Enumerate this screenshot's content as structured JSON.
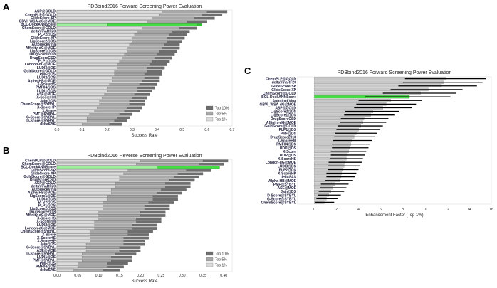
{
  "panel_labels": {
    "a": "A",
    "b": "B",
    "c": "C"
  },
  "chart_data": [
    {
      "type": "bar",
      "orientation": "horizontal",
      "stacked_overlay": true,
      "title": "PDBbind2016 Forward Screening Power Evaluation",
      "xlabel": "Success Rate",
      "ylabel": "",
      "xlim": [
        0,
        0.7
      ],
      "xticks": [
        0.0,
        0.1,
        0.2,
        0.3,
        0.4,
        0.5,
        0.6,
        0.7
      ],
      "legend_position": "bottom-right",
      "highlight": "BCL-DockANNScore",
      "highlight_color": "#44dd44",
      "categories": [
        "ASP@GOLD",
        "ChemPLP@GOLD",
        "GlideScore-SP",
        "GBVI_WSA-dG@MOE",
        "BCL-DockANNScore",
        "ChemScore@GOLD",
        "deltaVinaRF20",
        "PLP2@DS",
        "GlideScore-XP",
        "LigScore2@DS",
        "AutodockVina",
        "Affinity-dG@MOE",
        "LigScore1@DS",
        "DrugScore2018",
        "DrugScoreCSD",
        "PLP1@DS",
        "London-dG@MOE",
        "LUDI3@DS",
        "GoldScore@GOLD",
        "PMF@DS",
        "LUDI2@DS",
        "Alpha-HB@MOE",
        "X-ScoreHS",
        "PMF04@DS",
        "LUDI1@DS",
        "ASE@MOE",
        "X-ScoreHM",
        "Jain@DS",
        "ChemScore@SYBYL",
        "X-ScoreHP",
        "X-Score",
        "PMF@SYBYL",
        "G-Score@SYBYL",
        "D-Score@SYBYL",
        "deltaSAS"
      ],
      "series": [
        {
          "name": "Top 10%",
          "color": "#6e6e6e",
          "values": [
            0.68,
            0.66,
            0.63,
            0.6,
            0.58,
            0.56,
            0.53,
            0.52,
            0.51,
            0.5,
            0.49,
            0.49,
            0.48,
            0.47,
            0.46,
            0.45,
            0.44,
            0.43,
            0.42,
            0.42,
            0.41,
            0.41,
            0.4,
            0.39,
            0.38,
            0.37,
            0.36,
            0.35,
            0.35,
            0.34,
            0.33,
            0.3,
            0.29,
            0.28,
            0.26
          ]
        },
        {
          "name": "Top 5%",
          "color": "#a8a8a8",
          "values": [
            0.6,
            0.58,
            0.55,
            0.52,
            0.56,
            0.49,
            0.46,
            0.45,
            0.44,
            0.44,
            0.43,
            0.42,
            0.41,
            0.4,
            0.39,
            0.38,
            0.37,
            0.36,
            0.36,
            0.35,
            0.35,
            0.34,
            0.33,
            0.32,
            0.32,
            0.31,
            0.3,
            0.29,
            0.29,
            0.28,
            0.27,
            0.25,
            0.24,
            0.23,
            0.21
          ]
        },
        {
          "name": "Top 1%",
          "color": "#dcdcdc",
          "values": [
            0.42,
            0.41,
            0.38,
            0.36,
            0.2,
            0.34,
            0.32,
            0.31,
            0.3,
            0.3,
            0.29,
            0.28,
            0.28,
            0.27,
            0.26,
            0.25,
            0.24,
            0.24,
            0.23,
            0.23,
            0.22,
            0.22,
            0.21,
            0.2,
            0.2,
            0.19,
            0.18,
            0.17,
            0.17,
            0.16,
            0.15,
            0.13,
            0.12,
            0.12,
            0.1
          ]
        }
      ]
    },
    {
      "type": "bar",
      "orientation": "horizontal",
      "stacked_overlay": true,
      "title": "PDBbind2016 Reverse Screening Power Evaluation",
      "xlabel": "Success Rate",
      "ylabel": "",
      "xlim": [
        0,
        0.42
      ],
      "xticks": [
        0.0,
        0.05,
        0.1,
        0.15,
        0.2,
        0.25,
        0.3,
        0.35,
        0.4
      ],
      "legend_position": "bottom-right",
      "highlight": "BCL-DockANNScore",
      "highlight_color": "#44dd44",
      "categories": [
        "ChemPLP@GOLD",
        "ChemScore@GOLD",
        "BCL-DockANNScore",
        "GlideScore-SP",
        "GlideScore-XP",
        "GoldScore@GOLD",
        "DrugScoreCSD",
        "ASP@GOLD",
        "deltaVinaRF20",
        "AutodockVina",
        "Alpha-HB@MOE",
        "LigScore1@DS",
        "LUDI3@DS",
        "PLP2@DS",
        "PLP1@DS",
        "LigScore2@DS",
        "DrugScore2018",
        "Affinity-dG@MOE",
        "X-ScoreHS",
        "X-ScoreHM",
        "LUDI2@DS",
        "London-dG@MOE",
        "ChemScore@SYBYL",
        "X-Score",
        "X-ScoreHS",
        "X-ScoreHP",
        "Jain@DS",
        "G-Score@SYBYL",
        "ASE@MOE",
        "D-Score@SYBYL",
        "LUDI1@DS",
        "PMF@SYBYL",
        "PMF@DS",
        "PMF04@DS",
        "deltaSAS"
      ],
      "series": [
        {
          "name": "Top 10%",
          "color": "#6e6e6e",
          "values": [
            0.41,
            0.4,
            0.39,
            0.37,
            0.35,
            0.34,
            0.33,
            0.32,
            0.32,
            0.31,
            0.3,
            0.29,
            0.29,
            0.28,
            0.27,
            0.27,
            0.26,
            0.26,
            0.25,
            0.25,
            0.24,
            0.24,
            0.23,
            0.22,
            0.22,
            0.21,
            0.21,
            0.2,
            0.2,
            0.19,
            0.18,
            0.18,
            0.17,
            0.16,
            0.15
          ]
        },
        {
          "name": "Top 5%",
          "color": "#a8a8a8",
          "values": [
            0.35,
            0.34,
            0.39,
            0.31,
            0.29,
            0.28,
            0.27,
            0.26,
            0.26,
            0.25,
            0.24,
            0.23,
            0.23,
            0.22,
            0.21,
            0.21,
            0.2,
            0.2,
            0.19,
            0.19,
            0.18,
            0.18,
            0.17,
            0.17,
            0.16,
            0.16,
            0.16,
            0.15,
            0.15,
            0.14,
            0.13,
            0.13,
            0.12,
            0.12,
            0.11
          ]
        },
        {
          "name": "Top 1%",
          "color": "#dcdcdc",
          "values": [
            0.2,
            0.19,
            0.24,
            0.17,
            0.16,
            0.15,
            0.15,
            0.14,
            0.14,
            0.13,
            0.13,
            0.12,
            0.12,
            0.11,
            0.11,
            0.11,
            0.1,
            0.1,
            0.1,
            0.09,
            0.09,
            0.09,
            0.08,
            0.08,
            0.08,
            0.08,
            0.07,
            0.07,
            0.07,
            0.06,
            0.06,
            0.06,
            0.05,
            0.05,
            0.04
          ]
        }
      ]
    },
    {
      "type": "bar",
      "orientation": "horizontal",
      "error_bars": true,
      "title": "PDBbind2016 Forward Screening Power Evaluation",
      "xlabel": "Enhancement Factor (Top 1%)",
      "ylabel": "",
      "xlim": [
        -1.5,
        16
      ],
      "xticks": [
        0,
        2,
        4,
        6,
        8,
        10,
        12,
        14,
        16
      ],
      "highlight": "BCL-DockANNScore",
      "highlight_color": "#44dd44",
      "categories": [
        "ChemPLP@GOLD",
        "deltaVinaRF20",
        "GlideScore-SP",
        "GlideScore-XP",
        "ChemScore@GOLD",
        "BCL-DockANNScore",
        "AutodockVina",
        "GBVI_WSA-dG@MOE",
        "ASP@GOLD",
        "LigScore2@DS",
        "LigScore1@DS",
        "DrugScoreCSD",
        "Affinity-dG@MOE",
        "GoldScore@GOLD",
        "PLP1@DS",
        "PMF@DS",
        "DrugScore2018",
        "X-ScoreHM",
        "PMF04@DS",
        "LUDI1@DS",
        "X-Score",
        "LUDI2@DS",
        "X-ScoreHS",
        "London-dG@MOE",
        "LUDI3@DS",
        "PLP2@DS",
        "X-ScoreHP",
        "deltaSAS",
        "Alpha-HB@MOE",
        "PMF@SYBYL",
        "ASE@MOE",
        "Jain@DS",
        "D-Score@SYBYL",
        "G-Score@SYBYL",
        "ChemScore@SYBYL"
      ],
      "values": [
        11.9,
        11.7,
        11.5,
        10.3,
        9.6,
        8.6,
        6.9,
        6.5,
        6.2,
        5.3,
        5.1,
        4.5,
        4.4,
        4.2,
        4.0,
        3.8,
        3.6,
        3.4,
        3.3,
        3.2,
        3.1,
        3.0,
        2.9,
        2.8,
        2.7,
        2.6,
        2.5,
        2.4,
        2.3,
        1.9,
        1.7,
        1.5,
        1.3,
        1.1,
        0.9
      ],
      "error_low": [
        8.2,
        8.0,
        7.6,
        6.9,
        6.2,
        4.6,
        4.0,
        3.8,
        3.6,
        2.8,
        2.7,
        2.4,
        2.3,
        2.1,
        2.0,
        1.9,
        1.8,
        1.7,
        1.6,
        1.6,
        1.5,
        1.5,
        1.4,
        1.3,
        1.2,
        1.2,
        1.1,
        1.1,
        1.0,
        0.6,
        0.5,
        0.4,
        0.3,
        0.2,
        0.1
      ],
      "error_high": [
        15.5,
        15.2,
        14.7,
        13.4,
        12.8,
        12.3,
        9.7,
        9.2,
        8.8,
        7.7,
        7.3,
        6.7,
        6.5,
        6.2,
        5.9,
        5.7,
        5.5,
        5.2,
        5.0,
        4.9,
        4.7,
        4.6,
        4.4,
        4.3,
        4.1,
        4.0,
        3.8,
        3.7,
        3.5,
        3.1,
        2.9,
        2.7,
        2.4,
        2.1,
        1.8
      ],
      "bar_color": "#c8c8c8"
    }
  ]
}
